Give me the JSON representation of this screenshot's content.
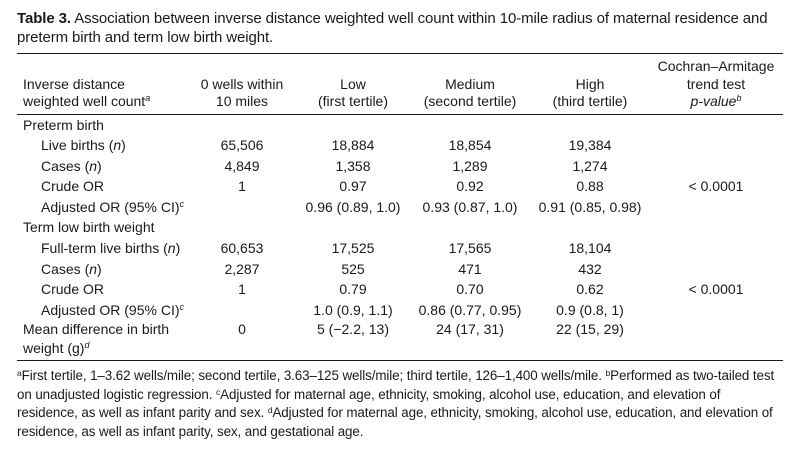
{
  "caption": {
    "label": "Table 3.",
    "text": "Association between inverse distance weighted well count within 10-mile radius of maternal residence and preterm birth and term low birth weight."
  },
  "headers": {
    "col0_line1": "Inverse distance",
    "col0_line2": "weighted well count",
    "col0_sup": "a",
    "col1_line1": "0 wells within",
    "col1_line2": "10 miles",
    "col2_line1": "Low",
    "col2_line2": "(first tertile)",
    "col3_line1": "Medium",
    "col3_line2": "(second tertile)",
    "col4_line1": "High",
    "col4_line2": "(third tertile)",
    "col5_line1": "Cochran–Armitage",
    "col5_line2": "trend test",
    "col5_line3": "p-value",
    "col5_sup": "b"
  },
  "preterm": {
    "title": "Preterm birth",
    "live_births": {
      "label": "Live births (",
      "label_n": "n",
      "label_close": ")",
      "values": [
        "65,506",
        "18,884",
        "18,854",
        "19,384"
      ]
    },
    "cases": {
      "label": "Cases (",
      "label_n": "n",
      "label_close": ")",
      "values": [
        "4,849",
        "1,358",
        "1,289",
        "1,274"
      ]
    },
    "crude": {
      "label": "Crude OR",
      "values": [
        "1",
        "0.97",
        "0.92",
        "0.88"
      ],
      "pvalue": "< 0.0001"
    },
    "adjusted": {
      "label": "Adjusted OR (95% CI)",
      "sup": "c",
      "values": [
        "",
        "0.96 (0.89, 1.0)",
        "0.93 (0.87, 1.0)",
        "0.91 (0.85, 0.98)"
      ]
    }
  },
  "lbw": {
    "title": "Term low birth weight",
    "live_births": {
      "label": "Full-term live births (",
      "label_n": "n",
      "label_close": ")",
      "values": [
        "60,653",
        "17,525",
        "17,565",
        "18,104"
      ]
    },
    "cases": {
      "label": "Cases (",
      "label_n": "n",
      "label_close": ")",
      "values": [
        "2,287",
        "525",
        "471",
        "432"
      ]
    },
    "crude": {
      "label": "Crude OR",
      "values": [
        "1",
        "0.79",
        "0.70",
        "0.62"
      ],
      "pvalue": "< 0.0001"
    },
    "adjusted": {
      "label": "Adjusted OR (95% CI)",
      "sup": "c",
      "values": [
        "",
        "1.0 (0.9, 1.1)",
        "0.86 (0.77, 0.95)",
        "0.9 (0.8, 1)"
      ]
    }
  },
  "mean_diff": {
    "label": "Mean difference in birth weight (g)",
    "sup": "d",
    "values": [
      "0",
      "5 (−2.2, 13)",
      "24 (17, 31)",
      "22 (15, 29)"
    ]
  },
  "footnotes": {
    "a_mark": "a",
    "a_text": "First tertile, 1–3.62 wells/mile; second tertile, 3.63–125 wells/mile; third tertile, 126–1,400 wells/mile.",
    "b_mark": "b",
    "b_text": "Performed as two-tailed test on unadjusted logistic regression.",
    "c_mark": "c",
    "c_text": "Adjusted for maternal age, ethnicity, smoking, alcohol use, education, and elevation of residence, as well as infant parity and sex.",
    "d_mark": "d",
    "d_text": "Adjusted for maternal age, ethnicity, smoking, alcohol use, education, and elevation of residence, as well as infant parity, sex, and gestational age."
  }
}
